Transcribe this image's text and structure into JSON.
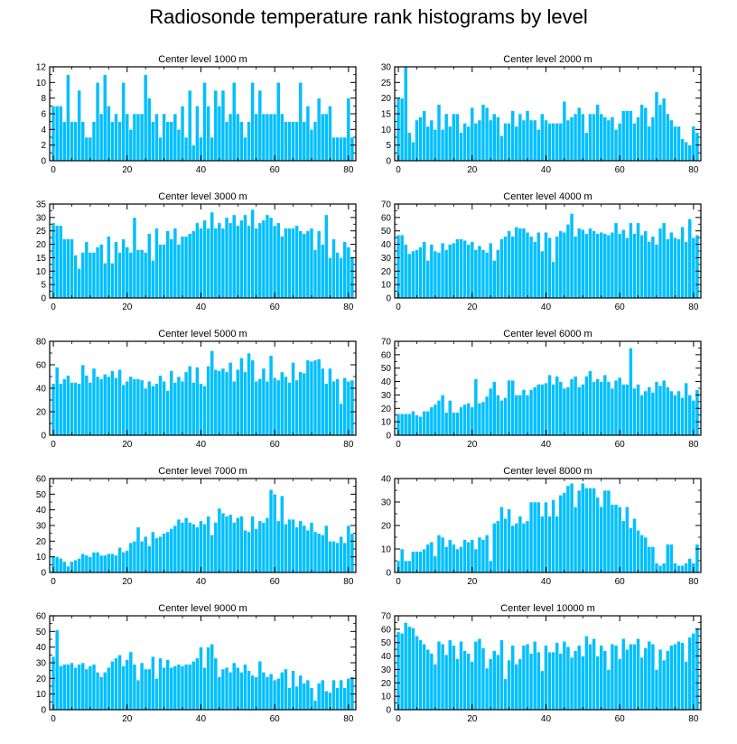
{
  "title": "Radiosonde temperature rank histograms by level",
  "colors": {
    "bar": "#00BFFF",
    "bar_edge": "#ffffff",
    "axis": "#000000",
    "background": "#ffffff"
  },
  "chart_data": [
    {
      "type": "bar",
      "title": "Center level 1000 m",
      "xlim": [
        -1,
        82
      ],
      "ylim": [
        0,
        12
      ],
      "xticks": [
        0,
        20,
        40,
        60,
        80
      ],
      "yticks": [
        0,
        2,
        4,
        6,
        8,
        10,
        12
      ],
      "x_start": 0,
      "values": [
        7,
        7,
        7,
        5,
        11,
        5,
        5,
        9,
        5,
        3,
        3,
        5,
        10,
        6,
        11,
        7,
        5,
        6,
        5,
        10,
        6,
        4,
        6,
        6,
        6,
        11,
        8,
        5,
        6,
        3,
        6,
        5,
        5,
        6,
        4,
        7,
        3,
        9,
        2,
        7,
        3,
        10,
        7,
        3,
        9,
        7,
        9,
        5,
        6,
        10,
        6,
        5,
        3,
        5,
        10,
        6,
        9,
        6,
        6,
        6,
        6,
        10,
        6,
        5,
        5,
        5,
        5,
        10,
        5,
        7,
        4,
        5,
        8,
        6,
        6,
        7,
        3,
        3,
        3,
        3,
        8,
        3
      ],
      "xlabel": "",
      "ylabel": ""
    },
    {
      "type": "bar",
      "title": "Center level 2000 m",
      "xlim": [
        -1,
        82
      ],
      "ylim": [
        0,
        30
      ],
      "xticks": [
        0,
        20,
        40,
        60,
        80
      ],
      "yticks": [
        0,
        5,
        10,
        15,
        20,
        25,
        30
      ],
      "x_start": 0,
      "values": [
        20,
        20,
        30,
        9,
        6,
        13,
        14,
        16,
        11,
        13,
        10,
        18,
        10,
        15,
        11,
        15,
        15,
        9,
        12,
        11,
        17,
        12,
        13,
        18,
        17,
        13,
        15,
        14,
        8,
        12,
        12,
        16,
        11,
        15,
        13,
        16,
        13,
        13,
        10,
        15,
        13,
        12,
        12,
        12,
        12,
        19,
        13,
        14,
        15,
        17,
        15,
        9,
        15,
        15,
        18,
        15,
        14,
        13,
        14,
        10,
        12,
        16,
        16,
        16,
        12,
        14,
        18,
        17,
        11,
        14,
        22,
        18,
        20,
        15,
        13,
        11,
        11,
        7,
        6,
        5,
        11,
        9
      ],
      "xlabel": "",
      "ylabel": ""
    },
    {
      "type": "bar",
      "title": "Center level 3000 m",
      "xlim": [
        -1,
        82
      ],
      "ylim": [
        0,
        35
      ],
      "xticks": [
        0,
        20,
        40,
        60,
        80
      ],
      "yticks": [
        0,
        5,
        10,
        15,
        20,
        25,
        30,
        35
      ],
      "x_start": 0,
      "values": [
        28,
        27,
        27,
        22,
        22,
        22,
        16,
        11,
        17,
        21,
        17,
        17,
        19,
        20,
        13,
        23,
        13,
        21,
        17,
        22,
        19,
        17,
        30,
        18,
        18,
        17,
        24,
        14,
        26,
        20,
        20,
        25,
        22,
        26,
        20,
        23,
        23,
        24,
        25,
        28,
        26,
        29,
        26,
        32,
        26,
        28,
        26,
        30,
        28,
        31,
        27,
        29,
        31,
        27,
        33,
        26,
        28,
        29,
        31,
        30,
        27,
        28,
        23,
        26,
        26,
        26,
        27,
        25,
        24,
        25,
        26,
        18,
        25,
        20,
        31,
        15,
        22,
        17,
        15,
        21,
        19,
        15
      ],
      "xlabel": "",
      "ylabel": ""
    },
    {
      "type": "bar",
      "title": "Center level 4000 m",
      "xlim": [
        -1,
        82
      ],
      "ylim": [
        0,
        70
      ],
      "xticks": [
        0,
        20,
        40,
        60,
        80
      ],
      "yticks": [
        0,
        10,
        20,
        30,
        40,
        50,
        60,
        70
      ],
      "x_start": 0,
      "values": [
        47,
        47,
        40,
        33,
        35,
        36,
        38,
        42,
        28,
        40,
        35,
        34,
        41,
        36,
        40,
        41,
        44,
        44,
        43,
        40,
        42,
        36,
        39,
        36,
        34,
        41,
        28,
        36,
        44,
        46,
        50,
        46,
        53,
        52,
        52,
        49,
        46,
        42,
        49,
        35,
        49,
        45,
        27,
        46,
        50,
        49,
        55,
        63,
        46,
        52,
        51,
        48,
        52,
        50,
        48,
        49,
        48,
        47,
        49,
        56,
        48,
        51,
        45,
        56,
        48,
        56,
        47,
        50,
        42,
        46,
        40,
        52,
        56,
        44,
        49,
        45,
        44,
        53,
        42,
        59,
        45,
        47
      ],
      "xlabel": "",
      "ylabel": ""
    },
    {
      "type": "bar",
      "title": "Center level 5000 m",
      "xlim": [
        -1,
        82
      ],
      "ylim": [
        0,
        80
      ],
      "xticks": [
        0,
        20,
        40,
        60,
        80
      ],
      "yticks": [
        0,
        20,
        40,
        60,
        80
      ],
      "x_start": 0,
      "values": [
        44,
        58,
        44,
        48,
        51,
        45,
        45,
        44,
        60,
        51,
        45,
        57,
        50,
        48,
        52,
        50,
        55,
        49,
        56,
        43,
        46,
        50,
        48,
        48,
        47,
        40,
        46,
        42,
        44,
        51,
        46,
        38,
        55,
        45,
        50,
        46,
        54,
        59,
        45,
        58,
        44,
        42,
        59,
        72,
        56,
        55,
        57,
        54,
        62,
        46,
        56,
        66,
        54,
        70,
        64,
        46,
        48,
        57,
        46,
        68,
        49,
        47,
        54,
        50,
        45,
        62,
        47,
        54,
        53,
        64,
        63,
        64,
        65,
        57,
        44,
        57,
        46,
        48,
        27,
        49,
        46,
        47
      ],
      "xlabel": "",
      "ylabel": ""
    },
    {
      "type": "bar",
      "title": "Center level 6000 m",
      "xlim": [
        -1,
        82
      ],
      "ylim": [
        0,
        70
      ],
      "xticks": [
        0,
        20,
        40,
        60,
        80
      ],
      "yticks": [
        0,
        10,
        20,
        30,
        40,
        50,
        60,
        70
      ],
      "x_start": 0,
      "values": [
        16,
        16,
        16,
        16,
        18,
        15,
        14,
        18,
        18,
        21,
        23,
        26,
        30,
        17,
        26,
        17,
        17,
        21,
        23,
        24,
        21,
        42,
        24,
        25,
        29,
        35,
        40,
        30,
        26,
        28,
        41,
        41,
        30,
        30,
        34,
        30,
        34,
        36,
        38,
        38,
        39,
        45,
        38,
        44,
        40,
        35,
        36,
        42,
        44,
        36,
        38,
        44,
        48,
        40,
        42,
        40,
        45,
        40,
        35,
        41,
        43,
        38,
        38,
        65,
        35,
        38,
        30,
        33,
        36,
        32,
        40,
        37,
        41,
        36,
        33,
        30,
        33,
        28,
        39,
        30,
        26,
        34
      ],
      "xlabel": "",
      "ylabel": ""
    },
    {
      "type": "bar",
      "title": "Center level 7000 m",
      "xlim": [
        -1,
        82
      ],
      "ylim": [
        0,
        60
      ],
      "xticks": [
        0,
        20,
        40,
        60,
        80
      ],
      "yticks": [
        0,
        10,
        20,
        30,
        40,
        50,
        60
      ],
      "x_start": 0,
      "values": [
        10,
        10,
        9,
        7,
        4,
        7,
        8,
        9,
        12,
        11,
        10,
        13,
        13,
        11,
        11,
        12,
        12,
        11,
        16,
        13,
        14,
        19,
        20,
        29,
        20,
        23,
        17,
        26,
        22,
        23,
        25,
        26,
        28,
        30,
        34,
        32,
        35,
        32,
        31,
        29,
        33,
        31,
        36,
        24,
        32,
        41,
        38,
        36,
        37,
        32,
        35,
        36,
        27,
        26,
        36,
        28,
        33,
        32,
        35,
        53,
        50,
        33,
        49,
        31,
        34,
        34,
        29,
        33,
        30,
        27,
        32,
        26,
        25,
        24,
        30,
        20,
        20,
        19,
        23,
        19,
        30,
        25
      ],
      "xlabel": "",
      "ylabel": ""
    },
    {
      "type": "bar",
      "title": "Center level 8000 m",
      "xlim": [
        -1,
        82
      ],
      "ylim": [
        0,
        40
      ],
      "xticks": [
        0,
        20,
        40,
        60,
        80
      ],
      "yticks": [
        0,
        10,
        20,
        30,
        40
      ],
      "x_start": 0,
      "values": [
        5,
        10,
        5,
        5,
        9,
        9,
        9,
        10,
        12,
        13,
        7,
        16,
        15,
        11,
        14,
        12,
        10,
        11,
        14,
        13,
        14,
        10,
        15,
        14,
        16,
        5,
        21,
        22,
        28,
        23,
        27,
        20,
        21,
        24,
        21,
        22,
        30,
        30,
        30,
        24,
        30,
        24,
        31,
        24,
        33,
        34,
        37,
        38,
        28,
        35,
        38,
        36,
        36,
        36,
        32,
        28,
        35,
        35,
        29,
        29,
        28,
        22,
        28,
        19,
        23,
        18,
        16,
        15,
        11,
        11,
        4,
        3,
        4,
        12,
        12,
        4,
        3,
        3,
        4,
        6,
        4,
        12
      ],
      "xlabel": "",
      "ylabel": ""
    },
    {
      "type": "bar",
      "title": "Center level 9000 m",
      "xlim": [
        -1,
        82
      ],
      "ylim": [
        0,
        60
      ],
      "xticks": [
        0,
        20,
        40,
        60,
        80
      ],
      "yticks": [
        0,
        10,
        20,
        30,
        40,
        50,
        60
      ],
      "x_start": 0,
      "values": [
        34,
        51,
        28,
        29,
        29,
        30,
        27,
        29,
        30,
        26,
        28,
        29,
        24,
        21,
        24,
        27,
        31,
        33,
        35,
        28,
        32,
        37,
        29,
        19,
        30,
        26,
        26,
        34,
        20,
        33,
        27,
        32,
        27,
        28,
        29,
        28,
        29,
        29,
        31,
        33,
        40,
        27,
        40,
        42,
        33,
        21,
        26,
        27,
        24,
        30,
        27,
        24,
        29,
        25,
        22,
        21,
        31,
        24,
        21,
        23,
        19,
        20,
        24,
        26,
        14,
        25,
        15,
        22,
        17,
        19,
        14,
        6,
        17,
        19,
        12,
        11,
        19,
        14,
        19,
        14,
        20,
        21
      ],
      "xlabel": "",
      "ylabel": ""
    },
    {
      "type": "bar",
      "title": "Center level 10000 m",
      "xlim": [
        -1,
        82
      ],
      "ylim": [
        0,
        70
      ],
      "xticks": [
        0,
        20,
        40,
        60,
        80
      ],
      "yticks": [
        0,
        10,
        20,
        30,
        40,
        50,
        60,
        70
      ],
      "x_start": 0,
      "values": [
        58,
        57,
        65,
        62,
        61,
        55,
        52,
        49,
        45,
        42,
        34,
        51,
        49,
        41,
        52,
        48,
        38,
        51,
        44,
        42,
        36,
        51,
        53,
        46,
        31,
        38,
        44,
        41,
        52,
        23,
        37,
        48,
        34,
        38,
        48,
        49,
        42,
        51,
        43,
        29,
        48,
        43,
        43,
        50,
        42,
        51,
        47,
        39,
        44,
        48,
        40,
        55,
        49,
        53,
        40,
        48,
        44,
        30,
        49,
        48,
        38,
        53,
        45,
        49,
        49,
        53,
        39,
        46,
        51,
        49,
        30,
        45,
        37,
        44,
        48,
        49,
        51,
        50,
        36,
        54,
        57,
        61
      ],
      "xlabel": "",
      "ylabel": ""
    }
  ]
}
